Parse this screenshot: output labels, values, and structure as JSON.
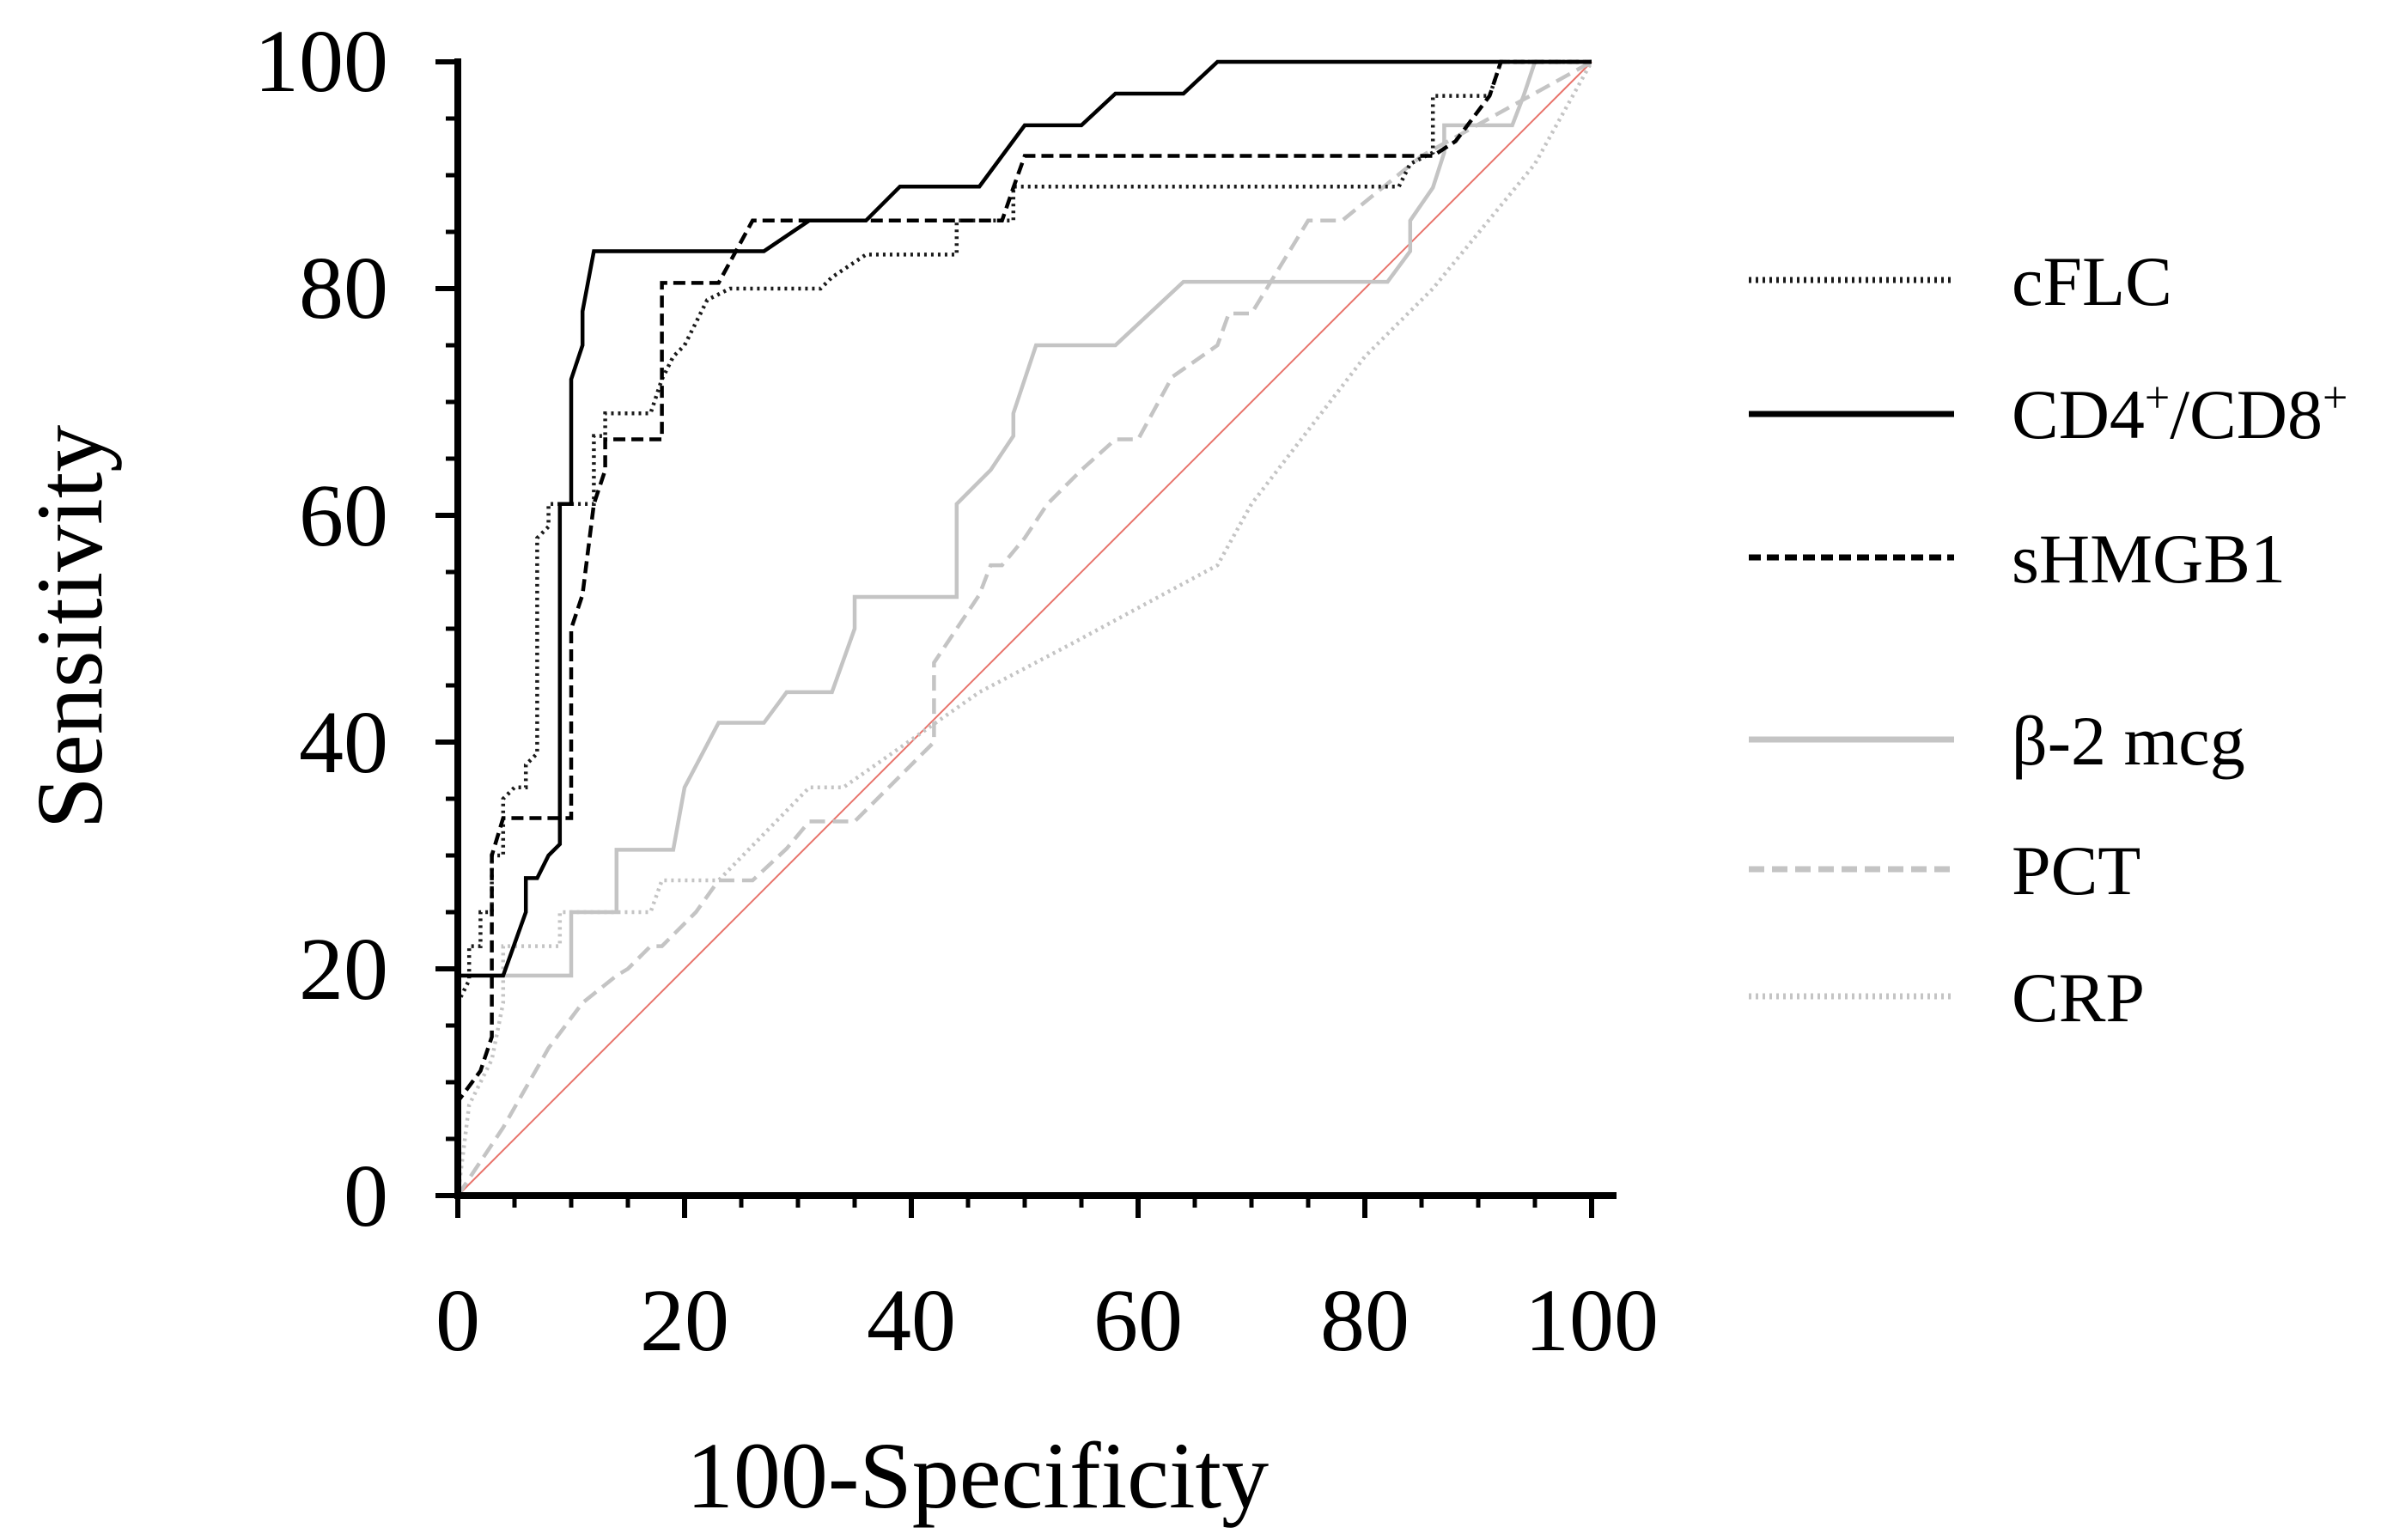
{
  "chart_data": {
    "type": "line",
    "title": "",
    "xlabel": "100-Specificity",
    "ylabel": "Sensitivity",
    "xlim": [
      0,
      100
    ],
    "ylim": [
      0,
      100
    ],
    "xticks": [
      "0",
      "20",
      "40",
      "60",
      "80",
      "100"
    ],
    "yticks": [
      "0",
      "20",
      "40",
      "60",
      "80",
      "100"
    ],
    "legend_position": "right",
    "reference_line": {
      "name": "reference",
      "color": "#e8736b",
      "points": [
        [
          0,
          0
        ],
        [
          100,
          100
        ]
      ]
    },
    "series": [
      {
        "name": "cFLC",
        "label_main": "cFLC",
        "color": "#1a1a1a",
        "dash": "3 5",
        "width": 4.5,
        "points": [
          [
            0,
            0
          ],
          [
            0,
            17
          ],
          [
            1,
            19
          ],
          [
            1,
            22
          ],
          [
            2,
            22
          ],
          [
            2,
            25
          ],
          [
            3,
            25
          ],
          [
            3,
            30
          ],
          [
            4,
            30
          ],
          [
            4,
            35
          ],
          [
            5,
            36
          ],
          [
            6,
            36
          ],
          [
            6,
            38
          ],
          [
            7,
            39
          ],
          [
            7,
            58
          ],
          [
            8,
            59
          ],
          [
            8,
            61
          ],
          [
            12,
            61
          ],
          [
            12,
            67
          ],
          [
            13,
            67
          ],
          [
            13,
            69
          ],
          [
            17,
            69
          ],
          [
            18,
            72
          ],
          [
            19,
            74
          ],
          [
            20,
            75
          ],
          [
            22,
            79
          ],
          [
            24,
            80
          ],
          [
            32,
            80
          ],
          [
            33,
            81
          ],
          [
            36,
            83
          ],
          [
            44,
            83
          ],
          [
            44,
            86
          ],
          [
            49,
            86
          ],
          [
            49,
            89
          ],
          [
            83,
            89
          ],
          [
            84,
            91
          ],
          [
            86,
            92
          ],
          [
            86,
            97
          ],
          [
            91,
            97
          ],
          [
            92,
            100
          ],
          [
            100,
            100
          ]
        ]
      },
      {
        "name": "CD4+/CD8+",
        "label_main": "CD4",
        "label_sup1": "+",
        "label_mid": "/CD8",
        "label_sup2": "+",
        "color": "#000000",
        "dash": "",
        "width": 4.5,
        "points": [
          [
            0,
            0
          ],
          [
            0,
            19.4
          ],
          [
            4,
            19.4
          ],
          [
            6,
            25
          ],
          [
            6,
            28
          ],
          [
            7,
            28
          ],
          [
            8,
            30
          ],
          [
            9,
            31
          ],
          [
            9,
            61
          ],
          [
            10,
            61
          ],
          [
            10,
            72
          ],
          [
            11,
            75
          ],
          [
            11,
            78
          ],
          [
            12,
            83.3
          ],
          [
            27,
            83.3
          ],
          [
            31,
            86
          ],
          [
            36,
            86
          ],
          [
            39,
            89
          ],
          [
            46,
            89
          ],
          [
            50,
            94.4
          ],
          [
            55,
            94.4
          ],
          [
            58,
            97.2
          ],
          [
            64,
            97.2
          ],
          [
            67,
            100
          ],
          [
            100,
            100
          ]
        ]
      },
      {
        "name": "sHMGB1",
        "label_main": "sHMGB1",
        "color": "#000000",
        "dash": "14 7",
        "width": 4.5,
        "points": [
          [
            0,
            0
          ],
          [
            0,
            8.3
          ],
          [
            2,
            11
          ],
          [
            3,
            14
          ],
          [
            3,
            30
          ],
          [
            4,
            33.3
          ],
          [
            10,
            33.3
          ],
          [
            10,
            50
          ],
          [
            11,
            53
          ],
          [
            12,
            61
          ],
          [
            13,
            64
          ],
          [
            13,
            66.7
          ],
          [
            18,
            66.7
          ],
          [
            18,
            80.5
          ],
          [
            23,
            80.5
          ],
          [
            26,
            86
          ],
          [
            48,
            86
          ],
          [
            49,
            88.9
          ],
          [
            50,
            91.7
          ],
          [
            86,
            91.7
          ],
          [
            88,
            93
          ],
          [
            91,
            97
          ],
          [
            92,
            100
          ],
          [
            100,
            100
          ]
        ]
      },
      {
        "name": "β-2 mcg",
        "label_main": "β-2 mcg",
        "color": "#c4c4c4",
        "dash": "",
        "width": 4.5,
        "points": [
          [
            0,
            0
          ],
          [
            0,
            19.4
          ],
          [
            10,
            19.4
          ],
          [
            10,
            25
          ],
          [
            14,
            25
          ],
          [
            14,
            30.5
          ],
          [
            19,
            30.5
          ],
          [
            20,
            36
          ],
          [
            23,
            41.7
          ],
          [
            27,
            41.7
          ],
          [
            29,
            44.4
          ],
          [
            33,
            44.4
          ],
          [
            35,
            50
          ],
          [
            35,
            52.8
          ],
          [
            44,
            52.8
          ],
          [
            44,
            61
          ],
          [
            47,
            64
          ],
          [
            49,
            67
          ],
          [
            49,
            69
          ],
          [
            51,
            75
          ],
          [
            58,
            75
          ],
          [
            64,
            80.6
          ],
          [
            82,
            80.6
          ],
          [
            84,
            83.3
          ],
          [
            84,
            86
          ],
          [
            86,
            88.9
          ],
          [
            87,
            92
          ],
          [
            87,
            94.4
          ],
          [
            93,
            94.4
          ],
          [
            94,
            97
          ],
          [
            95,
            100
          ],
          [
            100,
            100
          ]
        ]
      },
      {
        "name": "PCT",
        "label_main": "PCT",
        "color": "#c4c4c4",
        "dash": "18 9",
        "width": 4.5,
        "points": [
          [
            0,
            0
          ],
          [
            4,
            6
          ],
          [
            8,
            13
          ],
          [
            11,
            17
          ],
          [
            14,
            19.4
          ],
          [
            15,
            20
          ],
          [
            17,
            22
          ],
          [
            18,
            22
          ],
          [
            21,
            25
          ],
          [
            23,
            27.8
          ],
          [
            26,
            27.8
          ],
          [
            29,
            30.6
          ],
          [
            31,
            33
          ],
          [
            35,
            33
          ],
          [
            38,
            36
          ],
          [
            42,
            40
          ],
          [
            42,
            47
          ],
          [
            46,
            53
          ],
          [
            47,
            55.6
          ],
          [
            48,
            55.6
          ],
          [
            50,
            58
          ],
          [
            52,
            61
          ],
          [
            55,
            64
          ],
          [
            58,
            66.7
          ],
          [
            60,
            66.7
          ],
          [
            63,
            72.2
          ],
          [
            67,
            75
          ],
          [
            68,
            77.8
          ],
          [
            70,
            77.8
          ],
          [
            75,
            86
          ],
          [
            78,
            86
          ],
          [
            85,
            91.7
          ],
          [
            100,
            100
          ]
        ]
      },
      {
        "name": "CRP",
        "label_main": "CRP",
        "color": "#c4c4c4",
        "dash": "3 5",
        "width": 4.5,
        "points": [
          [
            0,
            0
          ],
          [
            1,
            8
          ],
          [
            3,
            12
          ],
          [
            4,
            17
          ],
          [
            4,
            22
          ],
          [
            9,
            22
          ],
          [
            9,
            25
          ],
          [
            17,
            25
          ],
          [
            18,
            27.8
          ],
          [
            23,
            27.8
          ],
          [
            31,
            36
          ],
          [
            34,
            36
          ],
          [
            46,
            44.4
          ],
          [
            54,
            48.6
          ],
          [
            67,
            55.6
          ],
          [
            70,
            61
          ],
          [
            80,
            74
          ],
          [
            86,
            80
          ],
          [
            95,
            91
          ],
          [
            100,
            100
          ]
        ]
      }
    ]
  }
}
